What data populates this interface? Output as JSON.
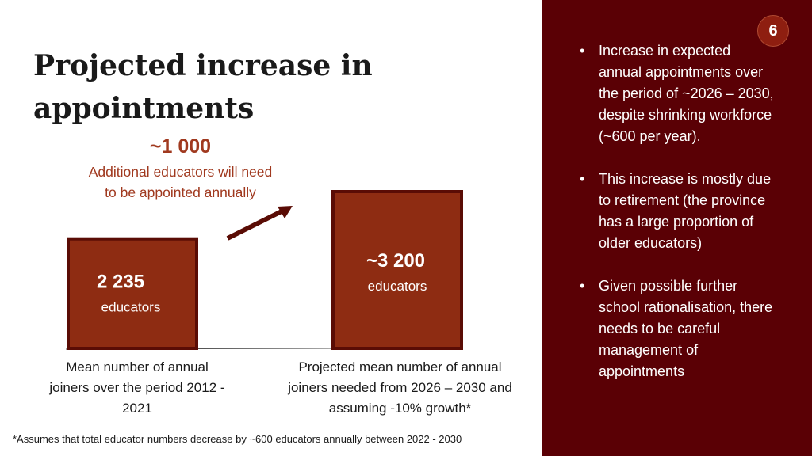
{
  "slide": {
    "title": "Projected increase in appointments",
    "page_number": "6",
    "callout": {
      "value": "~1 000",
      "text": "Additional educators will need to be appointed annually"
    },
    "footnote": "*Assumes that total educator numbers decrease by ~600 educators annually between 2022 - 2030"
  },
  "chart_data": {
    "type": "bar",
    "categories": [
      "Mean number of annual joiners over the period 2012 - 2021",
      "Projected mean number of annual joiners needed from 2026 – 2030 and assuming -10% growth*"
    ],
    "values": [
      2235,
      3200
    ],
    "value_labels": [
      "2 235",
      "~3 200"
    ],
    "unit_label": "educators",
    "ylim": [
      0,
      3200
    ],
    "colors": {
      "bar_fill": "#8e2c12",
      "bar_border": "#5a0c05",
      "arrow": "#5a0c05"
    }
  },
  "sidebar": {
    "background": "#5a0005",
    "bullets": [
      "Increase in expected annual appointments over the period of ~2026 – 2030, despite shrinking workforce (~600 per year).",
      "This increase is mostly due to retirement (the province has a large proportion of older educators)",
      "Given possible further school rationalisation, there needs to be careful management of appointments"
    ]
  }
}
